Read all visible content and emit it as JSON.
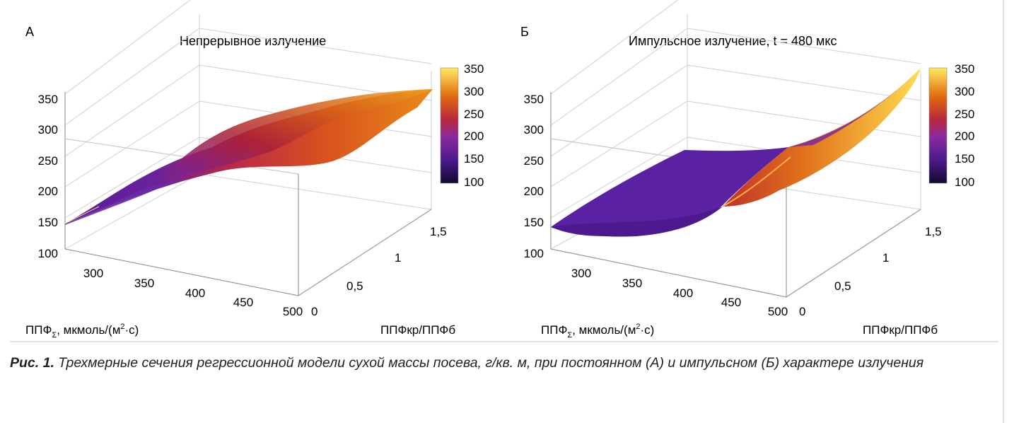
{
  "figure_caption": {
    "label": "Рис. 1.",
    "text": "Трехмерные сечения регрессионной модели сухой массы посева, г/кв. м, при постоянном (А) и импульсном (Б) характере излучения"
  },
  "colors": {
    "low": "#1a0b40",
    "mid_low": "#5a1a9a",
    "mid": "#b02a3a",
    "mid_high": "#e07a10",
    "high": "#ffe45a",
    "axis": "#aaaaaa"
  },
  "chart_data": [
    {
      "type": "surface",
      "panel_letter": "А",
      "title": "Непрерывное излучение",
      "x_axis": {
        "label_main": "ППФ",
        "label_sub": "Σ",
        "label_rest": ", мкмоль/(м",
        "label_sup": "2",
        "label_end": "·с)",
        "ticks": [
          "300",
          "350",
          "400",
          "450",
          "500"
        ]
      },
      "y_axis": {
        "label": "ППФкр/ППФб",
        "ticks": [
          "0",
          "0,5",
          "1",
          "1,5"
        ]
      },
      "z_axis": {
        "ticks": [
          "100",
          "150",
          "200",
          "250",
          "300",
          "350"
        ],
        "range": [
          100,
          350
        ]
      },
      "colorbar": {
        "ticks": [
          "350",
          "300",
          "250",
          "200",
          "150",
          "100"
        ],
        "range": [
          100,
          350
        ]
      },
      "surface_corners": {
        "x_min_y_min": 140,
        "x_max_y_min": 215,
        "x_min_y_max": 185,
        "x_max_y_max": 355
      }
    },
    {
      "type": "surface",
      "panel_letter": "Б",
      "title": "Импульсное излучение, t = 480 мкс",
      "x_axis": {
        "label_main": "ППФ",
        "label_sub": "Σ",
        "label_rest": ", мкмоль/(м",
        "label_sup": "2",
        "label_end": "·с)",
        "ticks": [
          "300",
          "350",
          "400",
          "450",
          "500"
        ]
      },
      "y_axis": {
        "label": "ППФкр/ППФб",
        "ticks": [
          "0",
          "0,5",
          "1",
          "1,5"
        ]
      },
      "z_axis": {
        "ticks": [
          "100",
          "150",
          "200",
          "250",
          "300",
          "350"
        ],
        "range": [
          100,
          350
        ]
      },
      "colorbar": {
        "ticks": [
          "350",
          "300",
          "250",
          "200",
          "150",
          "100"
        ],
        "range": [
          100,
          350
        ]
      },
      "surface_corners": {
        "x_min_y_min": 135,
        "x_max_y_min": 160,
        "x_min_y_max": 210,
        "x_max_y_max": 355
      }
    }
  ]
}
